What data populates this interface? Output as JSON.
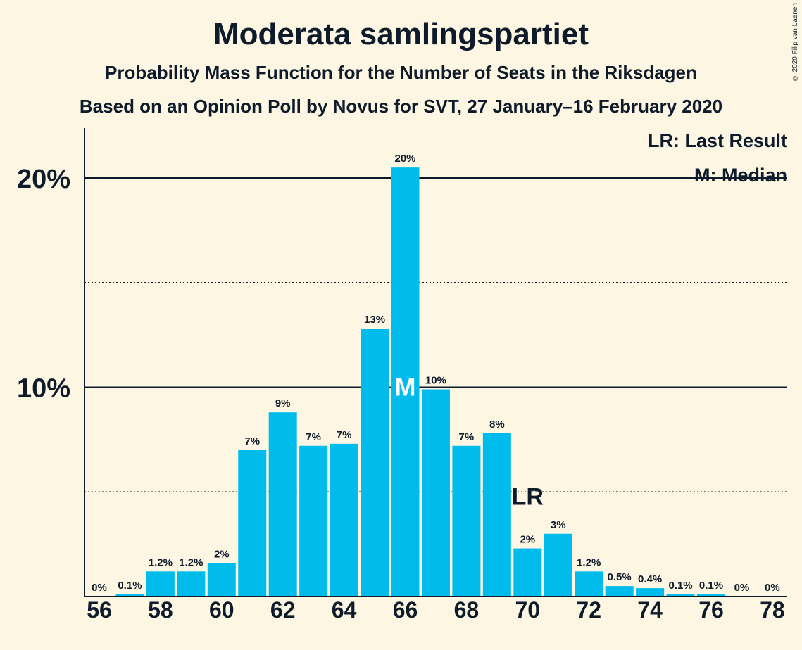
{
  "title": "Moderata samlingspartiet",
  "subtitle": "Probability Mass Function for the Number of Seats in the Riksdagen",
  "subtitle2": "Based on an Opinion Poll by Novus for SVT, 27 January–16 February 2020",
  "copyright": "© 2020 Filip van Laenen",
  "legend": {
    "last_result": "LR: Last Result",
    "median": "M: Median"
  },
  "colors": {
    "bar": "#00bcec",
    "background": "#fdf6e3",
    "text": "#0d1b2a"
  },
  "chart_data": {
    "type": "bar",
    "x": [
      56,
      57,
      58,
      59,
      60,
      61,
      62,
      63,
      64,
      65,
      66,
      67,
      68,
      69,
      70,
      71,
      72,
      73,
      74,
      75,
      76,
      77,
      78
    ],
    "values": [
      0.0,
      0.1,
      1.2,
      1.2,
      1.6,
      7.0,
      8.8,
      7.2,
      7.3,
      12.8,
      20.5,
      9.9,
      7.2,
      7.8,
      2.3,
      3.0,
      1.2,
      0.5,
      0.4,
      0.1,
      0.1,
      0.0,
      0.0
    ],
    "data_labels": [
      "0%",
      "0.1%",
      "1.2%",
      "1.2%",
      "2%",
      "7%",
      "9%",
      "7%",
      "7%",
      "13%",
      "20%",
      "10%",
      "7%",
      "8%",
      "2%",
      "3%",
      "1.2%",
      "0.5%",
      "0.4%",
      "0.1%",
      "0.1%",
      "0%",
      "0%"
    ],
    "x_tick_labels": [
      "56",
      "58",
      "60",
      "62",
      "64",
      "66",
      "68",
      "70",
      "72",
      "74",
      "76",
      "78"
    ],
    "x_tick_values": [
      56,
      58,
      60,
      62,
      64,
      66,
      68,
      70,
      72,
      74,
      76,
      78
    ],
    "y_tick_labels": [
      "10%",
      "20%"
    ],
    "y_tick_values": [
      10,
      20
    ],
    "y_minor_gridlines": [
      5,
      15
    ],
    "ylim": [
      0,
      22.3
    ],
    "median": 66,
    "median_label": "M",
    "last_result": 70,
    "last_result_label": "LR"
  }
}
